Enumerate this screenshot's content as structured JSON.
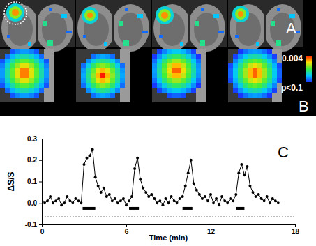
{
  "panel_labels": [
    "A",
    "B",
    "C"
  ],
  "colorbar": {
    "range": [
      0.1,
      0.004
    ],
    "ticks": [
      {
        "value": 0.004,
        "label": "0.004"
      },
      {
        "value": 0.1,
        "label": "p<0.1"
      }
    ]
  },
  "chart_data": {
    "type": "line",
    "marker": "circle",
    "color": "#000000",
    "xlabel": "Time (min)",
    "ylabel": "ΔS/S",
    "xlim": [
      0,
      18
    ],
    "xticks": [
      0,
      6,
      12,
      18
    ],
    "ylim": [
      -0.1,
      0.3
    ],
    "yticks": [
      {
        "value": -0.1,
        "label": "-0.1"
      },
      {
        "value": 0.0,
        "label": "0.0"
      },
      {
        "value": 0.1,
        "label": "0.1"
      },
      {
        "value": 0.2,
        "label": "0.2"
      },
      {
        "value": 0.3,
        "label": "0.3"
      }
    ],
    "x": [
      0.0,
      0.2,
      0.4,
      0.6,
      0.8,
      1.0,
      1.2,
      1.4,
      1.6,
      1.8,
      2.0,
      2.2,
      2.4,
      2.6,
      2.8,
      3.0,
      3.2,
      3.4,
      3.6,
      3.8,
      4.0,
      4.2,
      4.4,
      4.6,
      4.8,
      5.0,
      5.2,
      5.4,
      5.6,
      5.8,
      6.0,
      6.2,
      6.4,
      6.6,
      6.8,
      7.0,
      7.2,
      7.4,
      7.6,
      7.8,
      8.0,
      8.2,
      8.4,
      8.6,
      8.8,
      9.0,
      9.2,
      9.4,
      9.6,
      9.8,
      10.0,
      10.2,
      10.4,
      10.6,
      10.8,
      11.0,
      11.2,
      11.4,
      11.6,
      11.8,
      12.0,
      12.2,
      12.4,
      12.6,
      12.8,
      13.0,
      13.2,
      13.4,
      13.6,
      13.8,
      14.0,
      14.2,
      14.4,
      14.6,
      14.8,
      15.0,
      15.2,
      15.4,
      15.6,
      15.8,
      16.0,
      16.2,
      16.4,
      16.6,
      16.8
    ],
    "values": [
      0.02,
      0.0,
      0.01,
      0.03,
      0.0,
      0.01,
      0.02,
      -0.01,
      0.0,
      0.03,
      0.01,
      0.0,
      0.02,
      0.01,
      0.0,
      0.18,
      0.21,
      0.22,
      0.25,
      0.12,
      0.08,
      0.05,
      0.07,
      0.03,
      0.04,
      0.01,
      0.02,
      0.0,
      0.01,
      0.02,
      -0.01,
      0.01,
      0.03,
      0.16,
      0.21,
      0.11,
      0.07,
      0.05,
      0.03,
      0.04,
      0.02,
      0.0,
      0.01,
      -0.01,
      0.02,
      0.0,
      0.03,
      0.01,
      0.0,
      0.02,
      0.03,
      0.08,
      0.14,
      0.2,
      0.09,
      0.06,
      0.04,
      0.02,
      0.03,
      0.01,
      0.04,
      0.0,
      0.02,
      -0.01,
      0.03,
      0.01,
      0.0,
      0.02,
      0.01,
      0.04,
      0.14,
      0.18,
      0.13,
      0.17,
      0.08,
      0.05,
      0.03,
      0.04,
      0.02,
      0.01,
      0.03,
      0.0,
      0.02,
      0.01,
      0.0
    ],
    "stimulus": {
      "y": -0.025,
      "intervals": [
        [
          2.9,
          3.8
        ],
        [
          6.2,
          6.9
        ],
        [
          10.0,
          10.7
        ],
        [
          13.8,
          14.4
        ]
      ]
    },
    "baseline": -0.065
  }
}
